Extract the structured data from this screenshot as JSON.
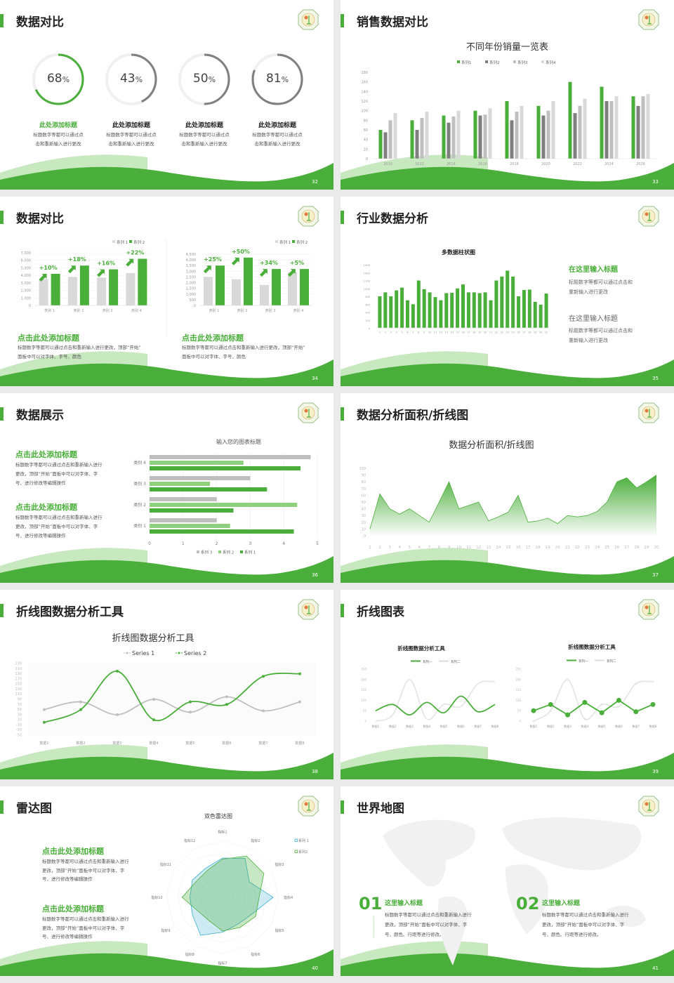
{
  "colors": {
    "green": "#4aae3a",
    "light_green": "#8fd07f",
    "dark_gray": "#7f7f7f",
    "gray": "#bfbfbf",
    "light_gray": "#d9d9d9",
    "blue": "#3bb0d0"
  },
  "s32": {
    "title": "数据对比",
    "page": "32",
    "rings": [
      {
        "value": 68,
        "num": "68",
        "unit": "%",
        "heading": "此处添加标题",
        "line1": "标题数字等都可以通过点",
        "line2": "击和重新输入进行更改"
      },
      {
        "value": 43,
        "num": "43",
        "unit": "%",
        "heading": "此处添加标题",
        "line1": "标题数字等都可以通过点",
        "line2": "击和重新输入进行更改"
      },
      {
        "value": 50,
        "num": "50",
        "unit": "%",
        "heading": "此处添加标题",
        "line1": "标题数字等都可以通过点",
        "line2": "击和重新输入进行更改"
      },
      {
        "value": 81,
        "num": "81",
        "unit": "%",
        "heading": "此处添加标题",
        "line1": "标题数字等都可以通过点",
        "line2": "击和重新输入进行更改"
      }
    ]
  },
  "s33": {
    "title": "销售数据对比",
    "page": "33"
  },
  "s34": {
    "title": "数据对比",
    "page": "34",
    "blocks": [
      {
        "heading": "点击此处添加标题",
        "line1": "标题数字等都可以通过点击和重新输入进行更改，顶部“开始”",
        "line2": "面板中可以对字体、字号、颜色"
      },
      {
        "heading": "点击此处添加标题",
        "line1": "标题数字等都可以通过点击和重新输入进行更改，顶部“开始”",
        "line2": "面板中可以对字体、字号、颜色"
      }
    ]
  },
  "s35": {
    "title": "行业数据分析",
    "page": "35",
    "blocks": [
      {
        "heading": "在这里输入标题",
        "line1": "标题数字等都可以通过点击和",
        "line2": "重新输入进行更改"
      },
      {
        "heading": "在这里输入标题",
        "line1": "标题数字等都可以通过点击和",
        "line2": "重新输入进行更改"
      }
    ]
  },
  "s36": {
    "title": "数据展示",
    "page": "36",
    "blocks": [
      {
        "heading": "点击此处添加标题",
        "line1": "标题数字等都可以通过点击和重新输入进行",
        "line2": "更改，顶部“开始”面板中可以对字体、字",
        "line3": "号、进行修改等编辑操作"
      },
      {
        "heading": "点击此处添加标题",
        "line1": "标题数字等都可以通过点击和重新输入进行",
        "line2": "更改，顶部“开始”面板中可以对字体、字",
        "line3": "号、进行修改等编辑操作"
      }
    ]
  },
  "s37": {
    "title": "数据分析面积/折线图",
    "page": "37"
  },
  "s38": {
    "title": "折线图数据分析工具",
    "page": "38"
  },
  "s39": {
    "title": "折线图表",
    "page": "39"
  },
  "s40": {
    "title": "雷达图",
    "page": "40",
    "blocks": [
      {
        "heading": "点击此处添加标题",
        "line1": "标题数字等都可以通过点击和重新输入进行",
        "line2": "更改，顶部“开始”面板中可以对字体、字",
        "line3": "号、进行修改等编辑操作"
      },
      {
        "heading": "点击此处添加标题",
        "line1": "标题数字等都可以通过点击和重新输入进行",
        "line2": "更改，顶部“开始”面板中可以对字体、字",
        "line3": "号、进行修改等编辑操作"
      }
    ]
  },
  "s41": {
    "title": "世界地图",
    "page": "41",
    "items": [
      {
        "num": "01",
        "heading": "这里输入标题",
        "line1": "标题数字等都可以通过点击和重新输入进行",
        "line2": "更改，顶部“开始”面板中可以对字体、字",
        "line3": "号、颜色、行距等进行修改。"
      },
      {
        "num": "02",
        "heading": "这里输入标题",
        "line1": "标题数字等都可以通过点击和重新输入进行",
        "line2": "更改，顶部“开始”面板中可以对字体、字",
        "line3": "号、颜色、行距等进行修改。"
      }
    ]
  },
  "chart_data": [
    {
      "type": "bar",
      "title": "不同年份销量一览表",
      "categories": [
        "2010",
        "2012",
        "2014",
        "2016",
        "2018",
        "2020",
        "2022",
        "2024",
        "2026"
      ],
      "series": [
        {
          "name": "系列1",
          "values": [
            60,
            80,
            90,
            100,
            120,
            110,
            160,
            150,
            130
          ],
          "color": "#4aae3a"
        },
        {
          "name": "系列2",
          "values": [
            55,
            60,
            75,
            90,
            80,
            90,
            95,
            120,
            110
          ],
          "color": "#7f7f7f"
        },
        {
          "name": "系列3",
          "values": [
            80,
            85,
            88,
            92,
            98,
            100,
            110,
            120,
            130
          ],
          "color": "#bfbfbf"
        },
        {
          "name": "系列4",
          "values": [
            95,
            98,
            100,
            105,
            110,
            120,
            125,
            130,
            135
          ],
          "color": "#d9d9d9"
        }
      ],
      "ylim": [
        0,
        180
      ],
      "yticks": [
        "0",
        "20",
        "40",
        "60",
        "80",
        "100",
        "120",
        "140",
        "160",
        "180"
      ],
      "legend": "top",
      "grid": false
    },
    {
      "type": "bar",
      "categories": [
        "类别 1",
        "类别 2",
        "类别 3",
        "类别 4"
      ],
      "series": [
        {
          "name": "系列 1",
          "values": [
            3500,
            3800,
            3700,
            4300
          ],
          "color": "#d9d9d9"
        },
        {
          "name": "系列 2",
          "values": [
            4200,
            5300,
            4800,
            6200
          ],
          "color": "#4aae3a"
        }
      ],
      "annotations": [
        "+10%",
        "+18%",
        "+16%",
        "+22%"
      ],
      "ylim": [
        0,
        7000
      ],
      "yticks": [
        "0",
        "1,000",
        "2,000",
        "3,000",
        "4,000",
        "5,000",
        "6,000",
        "7,000"
      ],
      "legend": "top-right",
      "grid": true
    },
    {
      "type": "bar",
      "categories": [
        "类别 1",
        "类别 2",
        "类别 3",
        "类别 4"
      ],
      "series": [
        {
          "name": "系列 1",
          "values": [
            2500,
            2300,
            1800,
            2900
          ],
          "color": "#d9d9d9"
        },
        {
          "name": "系列 2",
          "values": [
            3500,
            4200,
            3200,
            3200
          ],
          "color": "#4aae3a"
        }
      ],
      "annotations": [
        "+25%",
        "+50%",
        "+34%",
        "+5%"
      ],
      "ylim": [
        0,
        4500
      ],
      "yticks": [
        "0",
        "500",
        "1,000",
        "1,500",
        "2,000",
        "2,500",
        "3,000",
        "3,500",
        "4,000",
        "4,500"
      ],
      "legend": "top-right",
      "grid": true
    },
    {
      "type": "bar",
      "title": "多数据柱状图",
      "categories": [
        "1",
        "2",
        "3",
        "4",
        "5",
        "6",
        "7",
        "8",
        "9",
        "10",
        "11",
        "12",
        "13",
        "14",
        "15",
        "16",
        "17",
        "18",
        "19",
        "20",
        "21",
        "22",
        "23",
        "24",
        "25",
        "26",
        "27",
        "28",
        "29",
        "30",
        "31"
      ],
      "series": [
        {
          "values": [
            800,
            900,
            800,
            950,
            1020,
            700,
            600,
            1200,
            980,
            900,
            780,
            700,
            880,
            890,
            1000,
            1100,
            900,
            900,
            880,
            900,
            700,
            1200,
            1300,
            1450,
            1300,
            800,
            960,
            970,
            660,
            590,
            870
          ],
          "color": "#4aae3a"
        }
      ],
      "ylim": [
        0,
        1600
      ],
      "yticks": [
        "0",
        "200",
        "400",
        "600",
        "800",
        "1,000",
        "1,200",
        "1,400",
        "1,600"
      ],
      "grid": false
    },
    {
      "type": "bar-horizontal",
      "title": "输入您的图表标题",
      "categories": [
        "类别 1",
        "类别 2",
        "类别 3",
        "类别 4"
      ],
      "series": [
        {
          "name": "系列 1",
          "values": [
            4.3,
            2.5,
            3.5,
            4.5
          ],
          "color": "#4aae3a"
        },
        {
          "name": "系列 2",
          "values": [
            2.4,
            4.4,
            1.8,
            2.8
          ],
          "color": "#8fd07f"
        },
        {
          "name": "系列 3",
          "values": [
            2,
            2,
            3,
            4.8
          ],
          "color": "#bfbfbf"
        }
      ],
      "xlim": [
        0,
        5
      ],
      "xticks": [
        "0",
        "1",
        "2",
        "3",
        "4",
        "5"
      ],
      "legend": "bottom",
      "grid": true
    },
    {
      "type": "area",
      "title": "数据分析面积/折线图",
      "categories": [
        "1",
        "2",
        "3",
        "4",
        "5",
        "6",
        "7",
        "8",
        "9",
        "10",
        "11",
        "12",
        "13",
        "14",
        "15",
        "16",
        "17",
        "18",
        "19",
        "20",
        "21",
        "22",
        "23",
        "24",
        "25",
        "26",
        "27",
        "28",
        "29",
        "30"
      ],
      "series": [
        {
          "values": [
            10,
            62,
            40,
            32,
            40,
            30,
            20,
            50,
            80,
            40,
            45,
            50,
            22,
            28,
            35,
            60,
            20,
            22,
            26,
            18,
            30,
            28,
            30,
            36,
            50,
            80,
            86,
            71,
            80,
            90
          ],
          "color": "#4aae3a"
        }
      ],
      "ylim": [
        0,
        100
      ],
      "yticks": [
        "0",
        "10",
        "20",
        "30",
        "40",
        "50",
        "60",
        "70",
        "80",
        "90",
        "100"
      ],
      "grid": false
    },
    {
      "type": "line",
      "title": "折线图数据分析工具",
      "categories": [
        "数据1",
        "数据2",
        "数据3",
        "数据4",
        "数据5",
        "数据6",
        "数据7",
        "数据8"
      ],
      "series": [
        {
          "name": "Series 1",
          "values": [
            50,
            80,
            30,
            90,
            40,
            100,
            45,
            80
          ],
          "color": "#bfbfbf"
        },
        {
          "name": "Series 2",
          "values": [
            0,
            50,
            200,
            10,
            80,
            70,
            180,
            190
          ],
          "color": "#4aae3a"
        }
      ],
      "ylim": [
        -50,
        230
      ],
      "yticks": [
        "-50",
        "-30",
        "-10",
        "10",
        "30",
        "50",
        "70",
        "90",
        "110",
        "130",
        "150",
        "170",
        "190",
        "210",
        "230"
      ],
      "smooth": true,
      "legend": "top"
    },
    {
      "type": "line",
      "title": "折线图数据分析工具",
      "categories": [
        "数据1",
        "数据2",
        "数据3",
        "数据4",
        "数据5",
        "数据6",
        "数据7",
        "数据8"
      ],
      "series": [
        {
          "name": "系列一",
          "values": [
            50,
            80,
            30,
            90,
            40,
            120,
            45,
            80
          ],
          "color": "#4aae3a"
        },
        {
          "name": "系列二",
          "values": [
            0,
            30,
            200,
            10,
            80,
            70,
            180,
            190
          ],
          "color": "#e6e6e6"
        }
      ],
      "ylim": [
        0,
        250
      ],
      "yticks": [
        "0",
        "50",
        "100",
        "150",
        "200",
        "250"
      ],
      "smooth": true,
      "legend": "top"
    },
    {
      "type": "line",
      "title": "折线图数据分析工具",
      "categories": [
        "数据1",
        "数据2",
        "数据3",
        "数据4",
        "数据5",
        "数据6",
        "数据7",
        "数据8"
      ],
      "series": [
        {
          "name": "系列一",
          "values": [
            50,
            80,
            30,
            90,
            40,
            100,
            45,
            80
          ],
          "color": "#4aae3a"
        },
        {
          "name": "系列二",
          "values": [
            0,
            50,
            200,
            10,
            80,
            70,
            180,
            190
          ],
          "color": "#e6e6e6"
        }
      ],
      "ylim": [
        0,
        250
      ],
      "yticks": [
        "0",
        "50",
        "100",
        "150",
        "200",
        "250"
      ],
      "smooth": false,
      "legend": "top"
    },
    {
      "type": "radar",
      "title": "双色雷达图",
      "categories": [
        "指标1",
        "指标2",
        "指标3",
        "指标4",
        "指标5",
        "指标6",
        "指标7",
        "指标8",
        "指标9",
        "指标10",
        "指标11",
        "指标12"
      ],
      "series": [
        {
          "name": "系列 1",
          "values": [
            70,
            80,
            55,
            90,
            60,
            55,
            62,
            78,
            62,
            58,
            62,
            60
          ],
          "color": "#3bb0d0"
        },
        {
          "name": "系列2",
          "values": [
            68,
            85,
            85,
            65,
            68,
            62,
            60,
            48,
            50,
            72,
            55,
            55
          ],
          "color": "#4aae3a"
        }
      ],
      "ylim": [
        0,
        100
      ],
      "legend": "right"
    }
  ]
}
